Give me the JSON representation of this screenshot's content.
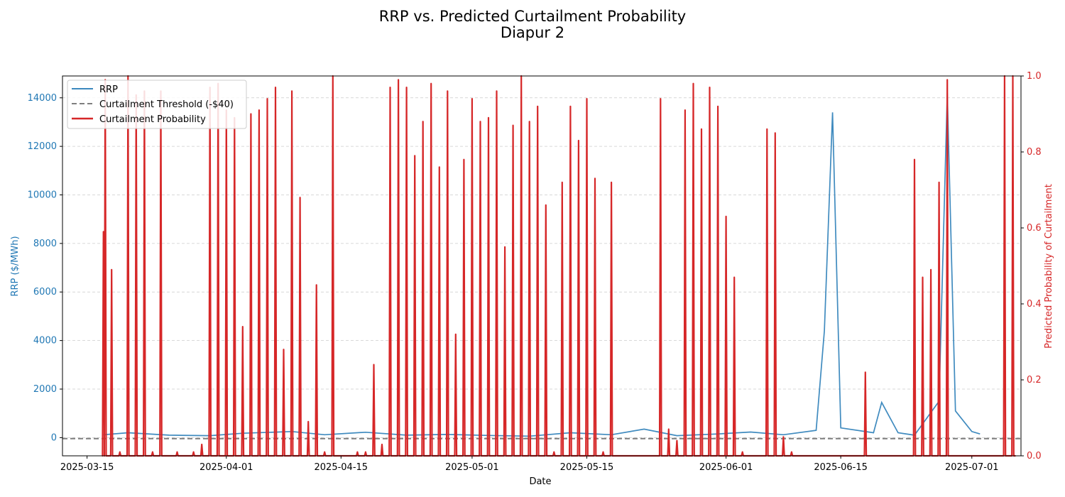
{
  "chart_data": {
    "type": "line",
    "title": "RRP vs. Predicted Curtailment Probability",
    "subtitle": "Diapur 2",
    "xlabel": "Date",
    "ylabel_left": "RRP ($/MWh)",
    "ylabel_right": "Predicted Probability of Curtailment",
    "x_ticks": [
      "2025-03-15",
      "2025-04-01",
      "2025-04-15",
      "2025-05-01",
      "2025-05-15",
      "2025-06-01",
      "2025-06-15",
      "2025-07-01"
    ],
    "y_left_ticks": [
      "0",
      "2000",
      "4000",
      "6000",
      "8000",
      "10000",
      "12000",
      "14000"
    ],
    "y_right_ticks": [
      "0.0",
      "0.2",
      "0.4",
      "0.6",
      "0.8",
      "1.0"
    ],
    "x_range": [
      "2025-03-12",
      "2025-07-07"
    ],
    "ylim_left": [
      -750,
      14900
    ],
    "ylim_right": [
      0,
      1
    ],
    "grid": "horizontal dashed",
    "legend_position": "top-left",
    "colors": {
      "rrp": "#1f77b4",
      "threshold": "#7f7f7f",
      "probability": "#d62728"
    },
    "legend": [
      {
        "label": "RRP",
        "style": "solid",
        "color": "#1f77b4"
      },
      {
        "label": "Curtailment Threshold (-$40)",
        "style": "dashed",
        "color": "#7f7f7f"
      },
      {
        "label": "Curtailment Probability",
        "style": "solid-thick",
        "color": "#d62728"
      }
    ],
    "threshold_value": -40,
    "series": [
      {
        "name": "RRP",
        "axis": "left",
        "points": [
          [
            "2025-03-17",
            120
          ],
          [
            "2025-03-20",
            200
          ],
          [
            "2025-03-25",
            100
          ],
          [
            "2025-03-30",
            80
          ],
          [
            "2025-04-03",
            180
          ],
          [
            "2025-04-09",
            250
          ],
          [
            "2025-04-13",
            120
          ],
          [
            "2025-04-18",
            220
          ],
          [
            "2025-04-23",
            100
          ],
          [
            "2025-04-28",
            130
          ],
          [
            "2025-05-03",
            90
          ],
          [
            "2025-05-08",
            60
          ],
          [
            "2025-05-13",
            200
          ],
          [
            "2025-05-18",
            120
          ],
          [
            "2025-05-22",
            350
          ],
          [
            "2025-05-26",
            80
          ],
          [
            "2025-05-31",
            150
          ],
          [
            "2025-06-04",
            230
          ],
          [
            "2025-06-08",
            120
          ],
          [
            "2025-06-12",
            300
          ],
          [
            "2025-06-13",
            4400
          ],
          [
            "2025-06-14",
            13400
          ],
          [
            "2025-06-15",
            400
          ],
          [
            "2025-06-19",
            200
          ],
          [
            "2025-06-20",
            1450
          ],
          [
            "2025-06-22",
            200
          ],
          [
            "2025-06-24",
            100
          ],
          [
            "2025-06-27",
            1500
          ],
          [
            "2025-06-28",
            14200
          ],
          [
            "2025-06-29",
            1100
          ],
          [
            "2025-07-01",
            250
          ],
          [
            "2025-07-02",
            150
          ]
        ]
      },
      {
        "name": "Curtailment Probability",
        "axis": "right",
        "spikes": [
          [
            "2025-03-17",
            0.59
          ],
          [
            "2025-03-17",
            0.99
          ],
          [
            "2025-03-18",
            0.49
          ],
          [
            "2025-03-19",
            0.01
          ],
          [
            "2025-03-20",
            1.0
          ],
          [
            "2025-03-21",
            0.95
          ],
          [
            "2025-03-22",
            0.96
          ],
          [
            "2025-03-23",
            0.01
          ],
          [
            "2025-03-24",
            0.96
          ],
          [
            "2025-03-26",
            0.01
          ],
          [
            "2025-03-28",
            0.01
          ],
          [
            "2025-03-29",
            0.03
          ],
          [
            "2025-03-30",
            0.97
          ],
          [
            "2025-03-31",
            0.98
          ],
          [
            "2025-04-01",
            0.91
          ],
          [
            "2025-04-02",
            0.89
          ],
          [
            "2025-04-03",
            0.34
          ],
          [
            "2025-04-04",
            0.9
          ],
          [
            "2025-04-05",
            0.91
          ],
          [
            "2025-04-06",
            0.94
          ],
          [
            "2025-04-07",
            0.97
          ],
          [
            "2025-04-08",
            0.28
          ],
          [
            "2025-04-09",
            0.96
          ],
          [
            "2025-04-10",
            0.68
          ],
          [
            "2025-04-11",
            0.09
          ],
          [
            "2025-04-12",
            0.45
          ],
          [
            "2025-04-13",
            0.01
          ],
          [
            "2025-04-14",
            1.0
          ],
          [
            "2025-04-17",
            0.01
          ],
          [
            "2025-04-18",
            0.01
          ],
          [
            "2025-04-19",
            0.24
          ],
          [
            "2025-04-20",
            0.03
          ],
          [
            "2025-04-21",
            0.97
          ],
          [
            "2025-04-22",
            0.99
          ],
          [
            "2025-04-23",
            0.97
          ],
          [
            "2025-04-24",
            0.79
          ],
          [
            "2025-04-25",
            0.88
          ],
          [
            "2025-04-26",
            0.98
          ],
          [
            "2025-04-27",
            0.76
          ],
          [
            "2025-04-28",
            0.96
          ],
          [
            "2025-04-29",
            0.32
          ],
          [
            "2025-04-30",
            0.78
          ],
          [
            "2025-05-01",
            0.94
          ],
          [
            "2025-05-02",
            0.88
          ],
          [
            "2025-05-03",
            0.89
          ],
          [
            "2025-05-04",
            0.96
          ],
          [
            "2025-05-05",
            0.55
          ],
          [
            "2025-05-06",
            0.87
          ],
          [
            "2025-05-07",
            1.0
          ],
          [
            "2025-05-08",
            0.88
          ],
          [
            "2025-05-09",
            0.92
          ],
          [
            "2025-05-10",
            0.66
          ],
          [
            "2025-05-11",
            0.01
          ],
          [
            "2025-05-12",
            0.72
          ],
          [
            "2025-05-13",
            0.92
          ],
          [
            "2025-05-14",
            0.83
          ],
          [
            "2025-05-15",
            0.94
          ],
          [
            "2025-05-16",
            0.73
          ],
          [
            "2025-05-17",
            0.01
          ],
          [
            "2025-05-18",
            0.72
          ],
          [
            "2025-05-24",
            0.94
          ],
          [
            "2025-05-25",
            0.07
          ],
          [
            "2025-05-26",
            0.04
          ],
          [
            "2025-05-27",
            0.91
          ],
          [
            "2025-05-28",
            0.98
          ],
          [
            "2025-05-29",
            0.86
          ],
          [
            "2025-05-30",
            0.97
          ],
          [
            "2025-05-31",
            0.92
          ],
          [
            "2025-06-01",
            0.63
          ],
          [
            "2025-06-02",
            0.47
          ],
          [
            "2025-06-03",
            0.01
          ],
          [
            "2025-06-06",
            0.86
          ],
          [
            "2025-06-07",
            0.85
          ],
          [
            "2025-06-08",
            0.05
          ],
          [
            "2025-06-09",
            0.01
          ],
          [
            "2025-06-18",
            0.22
          ],
          [
            "2025-06-24",
            0.78
          ],
          [
            "2025-06-25",
            0.47
          ],
          [
            "2025-06-26",
            0.49
          ],
          [
            "2025-06-27",
            0.72
          ],
          [
            "2025-06-28",
            0.99
          ],
          [
            "2025-07-05",
            1.0
          ],
          [
            "2025-07-06",
            1.0
          ]
        ]
      }
    ]
  }
}
